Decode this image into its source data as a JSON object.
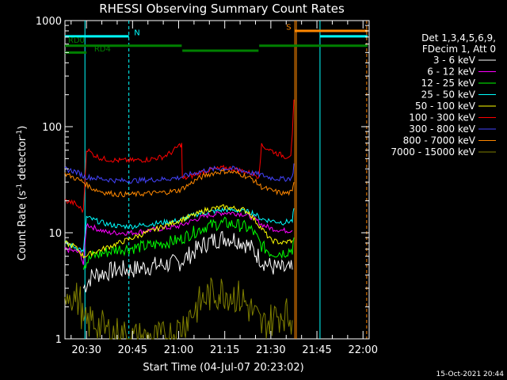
{
  "chart_data": {
    "type": "line",
    "title": "RHESSI Observing Summary Count Rates",
    "xlabel": "Start Time (04-Jul-07 20:23:02)",
    "ylabel_main": "Count Rate (s",
    "ylabel_sup1": "-1",
    "ylabel_mid": " detector",
    "ylabel_sup2": "-1",
    "ylabel_end": ")",
    "xscale": "linear",
    "yscale": "log",
    "xlim_minutes": [
      1223,
      1322
    ],
    "ylim": [
      1,
      1000
    ],
    "x_ticks": [
      {
        "value": 1230,
        "label": "20:30"
      },
      {
        "value": 1245,
        "label": "20:45"
      },
      {
        "value": 1260,
        "label": "21:00"
      },
      {
        "value": 1275,
        "label": "21:15"
      },
      {
        "value": 1290,
        "label": "21:30"
      },
      {
        "value": 1305,
        "label": "21:45"
      },
      {
        "value": 1320,
        "label": "22:00"
      }
    ],
    "y_ticks": [
      {
        "value": 1,
        "label": "1"
      },
      {
        "value": 10,
        "label": "10"
      },
      {
        "value": 100,
        "label": "100"
      },
      {
        "value": 1000,
        "label": "1000"
      }
    ],
    "legend_header": [
      "Det 1,3,4,5,6,9,",
      "FDecim 1, Att 0"
    ],
    "legend_position": "right",
    "series": [
      {
        "name": "3 - 6 keV",
        "color": "#ffffff",
        "values": [
          [
            1229,
            3.0
          ],
          [
            1232,
            4.0
          ],
          [
            1236,
            4.2
          ],
          [
            1240,
            4.5
          ],
          [
            1245,
            4.5
          ],
          [
            1250,
            4.8
          ],
          [
            1255,
            5.0
          ],
          [
            1260,
            5.2
          ],
          [
            1263,
            6.0
          ],
          [
            1266,
            7.0
          ],
          [
            1269,
            8.0
          ],
          [
            1272,
            8.6
          ],
          [
            1275,
            9.0
          ],
          [
            1278,
            8.8
          ],
          [
            1281,
            8.2
          ],
          [
            1284,
            7.0
          ],
          [
            1287,
            5.5
          ],
          [
            1290,
            4.8
          ],
          [
            1294,
            4.5
          ],
          [
            1297,
            4.5
          ]
        ]
      },
      {
        "name": "6 - 12 keV",
        "color": "#ff00ff",
        "values": [
          [
            1223,
            7.0
          ],
          [
            1228,
            6.5
          ],
          [
            1229,
            5.0
          ],
          [
            1230,
            12.0
          ],
          [
            1233,
            11.0
          ],
          [
            1237,
            10.0
          ],
          [
            1241,
            10.0
          ],
          [
            1245,
            10.0
          ],
          [
            1250,
            10.5
          ],
          [
            1255,
            11.0
          ],
          [
            1260,
            11.5
          ],
          [
            1263,
            12.5
          ],
          [
            1266,
            13.5
          ],
          [
            1269,
            14.5
          ],
          [
            1272,
            15.0
          ],
          [
            1275,
            15.5
          ],
          [
            1278,
            15.3
          ],
          [
            1281,
            15.0
          ],
          [
            1284,
            14.0
          ],
          [
            1287,
            12.0
          ],
          [
            1290,
            11.0
          ],
          [
            1294,
            10.5
          ],
          [
            1297,
            10.5
          ]
        ]
      },
      {
        "name": "12 - 25 keV",
        "color": "#00ff00",
        "values": [
          [
            1229,
            5.0
          ],
          [
            1232,
            6.0
          ],
          [
            1236,
            6.5
          ],
          [
            1240,
            7.0
          ],
          [
            1245,
            7.2
          ],
          [
            1250,
            7.5
          ],
          [
            1255,
            8.0
          ],
          [
            1260,
            8.5
          ],
          [
            1263,
            9.5
          ],
          [
            1266,
            10.5
          ],
          [
            1269,
            11.5
          ],
          [
            1272,
            12.0
          ],
          [
            1275,
            12.3
          ],
          [
            1278,
            12.0
          ],
          [
            1281,
            11.5
          ],
          [
            1284,
            10.5
          ],
          [
            1287,
            7.5
          ],
          [
            1290,
            6.5
          ],
          [
            1294,
            6.5
          ],
          [
            1297,
            7.0
          ],
          [
            1297.5,
            9.0
          ]
        ]
      },
      {
        "name": "25 - 50 keV",
        "color": "#00ffff",
        "values": [
          [
            1223,
            8.0
          ],
          [
            1228,
            7.0
          ],
          [
            1229,
            6.5
          ],
          [
            1230,
            14.0
          ],
          [
            1233,
            13.0
          ],
          [
            1237,
            12.0
          ],
          [
            1241,
            11.5
          ],
          [
            1245,
            11.5
          ],
          [
            1250,
            12.0
          ],
          [
            1255,
            12.5
          ],
          [
            1260,
            13.0
          ],
          [
            1263,
            14.0
          ],
          [
            1266,
            15.0
          ],
          [
            1269,
            15.5
          ],
          [
            1272,
            16.0
          ],
          [
            1275,
            16.5
          ],
          [
            1278,
            16.3
          ],
          [
            1281,
            16.0
          ],
          [
            1284,
            15.5
          ],
          [
            1287,
            13.5
          ],
          [
            1290,
            13.0
          ],
          [
            1294,
            12.5
          ],
          [
            1297,
            13.0
          ],
          [
            1297.5,
            17.0
          ]
        ]
      },
      {
        "name": "50 - 100 keV",
        "color": "#ffff00",
        "values": [
          [
            1223,
            8.0
          ],
          [
            1226,
            7.5
          ],
          [
            1228,
            6.5
          ],
          [
            1229,
            6.0
          ],
          [
            1263,
            14.0
          ],
          [
            1266,
            15.0
          ],
          [
            1269,
            16.5
          ],
          [
            1272,
            17.0
          ],
          [
            1275,
            17.5
          ],
          [
            1278,
            17.0
          ],
          [
            1281,
            16.5
          ],
          [
            1283,
            15.5
          ],
          [
            1284,
            14.0
          ],
          [
            1287,
            11.0
          ],
          [
            1290,
            8.5
          ],
          [
            1294,
            8.0
          ],
          [
            1297,
            8.5
          ]
        ]
      },
      {
        "name": "100 - 300 keV",
        "color": "#ff0000",
        "values": [
          [
            1223,
            20.0
          ],
          [
            1226,
            19.0
          ],
          [
            1228,
            17.0
          ],
          [
            1229,
            16.0
          ],
          [
            1230,
            62.0
          ],
          [
            1232,
            55.0
          ],
          [
            1235,
            50.0
          ],
          [
            1240,
            48.0
          ],
          [
            1245,
            48.0
          ],
          [
            1250,
            49.0
          ],
          [
            1255,
            52.0
          ],
          [
            1258,
            58.0
          ],
          [
            1260,
            66.0
          ],
          [
            1261,
            68.0
          ],
          [
            1261.2,
            32.0
          ],
          [
            1264,
            34.0
          ],
          [
            1267,
            37.0
          ],
          [
            1270,
            39.0
          ],
          [
            1273,
            40.0
          ],
          [
            1275,
            41.0
          ],
          [
            1278,
            40.0
          ],
          [
            1281,
            38.0
          ],
          [
            1284,
            36.0
          ],
          [
            1286,
            34.0
          ],
          [
            1287,
            66.0
          ],
          [
            1289,
            62.0
          ],
          [
            1292,
            56.0
          ],
          [
            1295,
            52.0
          ],
          [
            1296.5,
            55.0
          ],
          [
            1297,
            80.0
          ],
          [
            1297.5,
            180.0
          ]
        ]
      },
      {
        "name": "300 - 800 keV",
        "color": "#4444ff",
        "values": [
          [
            1223,
            40.0
          ],
          [
            1226,
            38.0
          ],
          [
            1228,
            36.0
          ],
          [
            1229,
            34.0
          ],
          [
            1232,
            33.0
          ],
          [
            1236,
            32.0
          ],
          [
            1240,
            31.0
          ],
          [
            1245,
            31.0
          ],
          [
            1250,
            31.5
          ],
          [
            1255,
            32.0
          ],
          [
            1260,
            33.0
          ],
          [
            1263,
            35.0
          ],
          [
            1266,
            37.0
          ],
          [
            1269,
            39.0
          ],
          [
            1272,
            40.0
          ],
          [
            1275,
            40.5
          ],
          [
            1278,
            40.0
          ],
          [
            1281,
            38.5
          ],
          [
            1284,
            36.5
          ],
          [
            1287,
            35.0
          ],
          [
            1290,
            33.0
          ],
          [
            1294,
            32.0
          ],
          [
            1297,
            33.0
          ],
          [
            1297.5,
            45.0
          ]
        ]
      },
      {
        "name": "800 - 7000 keV",
        "color": "#ff8800",
        "values": [
          [
            1223,
            36.0
          ],
          [
            1226,
            33.0
          ],
          [
            1228,
            31.0
          ],
          [
            1229,
            30.0
          ],
          [
            1232,
            26.0
          ],
          [
            1236,
            24.0
          ],
          [
            1240,
            23.0
          ],
          [
            1245,
            23.0
          ],
          [
            1250,
            23.5
          ],
          [
            1255,
            24.0
          ],
          [
            1260,
            25.0
          ],
          [
            1263,
            28.0
          ],
          [
            1266,
            32.0
          ],
          [
            1269,
            35.0
          ],
          [
            1272,
            37.0
          ],
          [
            1275,
            38.0
          ],
          [
            1278,
            37.0
          ],
          [
            1281,
            35.0
          ],
          [
            1284,
            32.0
          ],
          [
            1287,
            27.0
          ],
          [
            1290,
            25.0
          ],
          [
            1294,
            23.5
          ],
          [
            1297,
            24.0
          ],
          [
            1297.5,
            30.0
          ]
        ]
      },
      {
        "name": "7000 - 15000 keV",
        "color": "#808000",
        "values": [
          [
            1223,
            3.0
          ],
          [
            1226,
            2.5
          ],
          [
            1228,
            2.2
          ],
          [
            1229,
            1.3
          ],
          [
            1232,
            1.5
          ],
          [
            1236,
            1.2
          ],
          [
            1240,
            1.1
          ],
          [
            1245,
            1.0
          ],
          [
            1250,
            1.0
          ],
          [
            1255,
            1.0
          ],
          [
            1260,
            1.2
          ],
          [
            1263,
            1.6
          ],
          [
            1266,
            2.0
          ],
          [
            1269,
            2.5
          ],
          [
            1272,
            2.7
          ],
          [
            1275,
            2.8
          ],
          [
            1278,
            2.6
          ],
          [
            1281,
            2.3
          ],
          [
            1284,
            1.8
          ],
          [
            1287,
            1.3
          ],
          [
            1290,
            1.5
          ],
          [
            1294,
            1.8
          ],
          [
            1297,
            1.5
          ]
        ]
      }
    ],
    "attenuator_bars": [
      {
        "label": "",
        "color": "#00ffff",
        "start": 1223,
        "end": 1243.8,
        "y": 710
      },
      {
        "label": "",
        "color": "#00ffff",
        "start": 1306,
        "end": 1321.5,
        "y": 710
      },
      {
        "label": "",
        "color": "#ff8800",
        "start": 1297.8,
        "end": 1321.5,
        "y": 800
      },
      {
        "label": "",
        "color": "#008000",
        "start": 1223,
        "end": 1261,
        "y": 580
      },
      {
        "label": "",
        "color": "#008000",
        "start": 1261.2,
        "end": 1286,
        "y": 520
      },
      {
        "label": "",
        "color": "#008000",
        "start": 1286.2,
        "end": 1321.5,
        "y": 580
      },
      {
        "label": "",
        "color": "#008000",
        "start": 1223,
        "end": 1230,
        "y": 500
      }
    ],
    "markers": [
      {
        "label": "RD0",
        "color": "#008000",
        "x": 1224,
        "y": 620
      },
      {
        "label": "RD4",
        "color": "#008000",
        "x": 1232.5,
        "y": 510
      },
      {
        "label": "N",
        "color": "#00ffff",
        "x": 1245.5,
        "y": 730
      },
      {
        "label": "S",
        "color": "#ff8800",
        "x": 1295,
        "y": 820
      }
    ],
    "vertical_lines": [
      {
        "x": 1229.5,
        "color": "#00ffff",
        "style": "solid"
      },
      {
        "x": 1243.8,
        "color": "#00ffff",
        "style": "dashed"
      },
      {
        "x": 1297.8,
        "color": "#ff8800",
        "style": "solid"
      },
      {
        "x": 1298.3,
        "color": "#ff8800",
        "style": "solid"
      },
      {
        "x": 1306,
        "color": "#00ffff",
        "style": "solid"
      },
      {
        "x": 1321.2,
        "color": "#ff8800",
        "style": "dashed"
      }
    ],
    "timestamp": "15-Oct-2021 20:44"
  }
}
